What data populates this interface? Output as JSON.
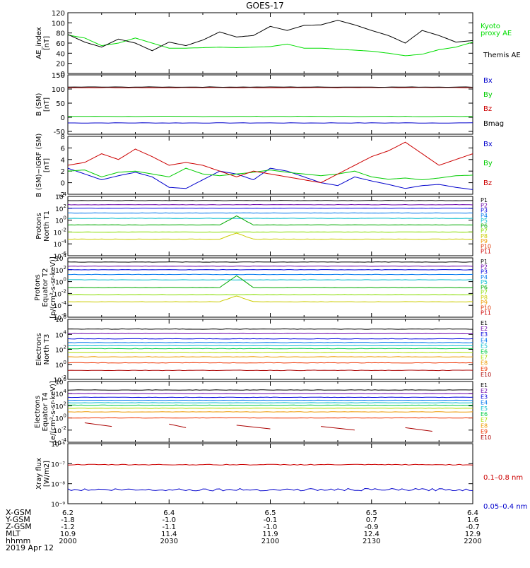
{
  "title": "GOES-17",
  "x_range_minutes": [
    0,
    120
  ],
  "chart_data": [
    {
      "type": "line",
      "panel": "ae",
      "ylabel": [
        "AE_index",
        "[nT]"
      ],
      "ylim": [
        0,
        120
      ],
      "yticks": [
        "0",
        "20",
        "40",
        "60",
        "80",
        "100",
        "120"
      ],
      "scale": "linear",
      "series": [
        {
          "name": "Kyoto proxy AE",
          "legend": [
            "Kyoto",
            "proxy AE"
          ],
          "color": "#00dd00",
          "x": [
            0,
            5,
            10,
            15,
            20,
            25,
            30,
            35,
            40,
            45,
            50,
            55,
            60,
            65,
            70,
            75,
            80,
            85,
            90,
            95,
            100,
            105,
            110,
            115,
            120
          ],
          "y": [
            76,
            70,
            55,
            60,
            70,
            60,
            50,
            50,
            51,
            52,
            51,
            52,
            53,
            58,
            50,
            50,
            48,
            46,
            44,
            40,
            35,
            38,
            47,
            52,
            62
          ]
        },
        {
          "name": "Themis AE",
          "legend": [
            "Themis AE"
          ],
          "color": "#000000",
          "x": [
            0,
            5,
            10,
            15,
            20,
            25,
            30,
            35,
            40,
            45,
            50,
            55,
            60,
            65,
            70,
            75,
            80,
            85,
            90,
            95,
            100,
            105,
            110,
            115,
            120
          ],
          "y": [
            77,
            62,
            52,
            68,
            60,
            45,
            62,
            55,
            66,
            82,
            72,
            75,
            93,
            85,
            95,
            96,
            105,
            96,
            85,
            75,
            60,
            85,
            75,
            62,
            65
          ]
        }
      ]
    },
    {
      "type": "line",
      "panel": "b",
      "ylabel": [
        "B (SM)",
        "[nT]"
      ],
      "ylim": [
        -60,
        150
      ],
      "yticks": [
        "-50",
        "0",
        "50",
        "100",
        "150"
      ],
      "scale": "linear",
      "series": [
        {
          "name": "Bx",
          "color": "#0000cc",
          "y_const": -20
        },
        {
          "name": "By",
          "color": "#00cc00",
          "y_const": 3
        },
        {
          "name": "Bz",
          "color": "#cc0000",
          "y_const": 105
        },
        {
          "name": "Bmag",
          "color": "#000000",
          "y_const": 107
        }
      ]
    },
    {
      "type": "line",
      "panel": "bdiff",
      "ylabel": [
        "B (SM)−IGRF (SM)",
        "[nT]"
      ],
      "ylim": [
        -2,
        8
      ],
      "yticks": [
        "-2",
        "0",
        "2",
        "4",
        "6",
        "8"
      ],
      "scale": "linear",
      "series": [
        {
          "name": "Bx",
          "color": "#0000cc",
          "x": [
            0,
            5,
            10,
            15,
            20,
            25,
            30,
            35,
            40,
            45,
            50,
            55,
            60,
            65,
            70,
            75,
            80,
            85,
            90,
            95,
            100,
            105,
            110,
            115,
            120
          ],
          "y": [
            2.5,
            1.5,
            0.5,
            1.2,
            1.8,
            1.0,
            -0.8,
            -1.0,
            0.5,
            2.0,
            1.5,
            0.5,
            2.5,
            2.0,
            1.0,
            0.0,
            -0.5,
            1.0,
            0.3,
            -0.3,
            -1.0,
            -0.5,
            -0.3,
            -0.8,
            -1.2
          ]
        },
        {
          "name": "By",
          "color": "#00cc00",
          "x": [
            0,
            5,
            10,
            15,
            20,
            25,
            30,
            35,
            40,
            45,
            50,
            55,
            60,
            65,
            70,
            75,
            80,
            85,
            90,
            95,
            100,
            105,
            110,
            115,
            120
          ],
          "y": [
            2.0,
            2.2,
            1.0,
            1.8,
            2.0,
            1.5,
            1.0,
            2.5,
            1.5,
            1.2,
            1.5,
            1.8,
            2.2,
            1.8,
            1.5,
            1.2,
            1.5,
            2.0,
            1.0,
            0.6,
            0.8,
            0.5,
            0.8,
            1.2,
            1.3
          ]
        },
        {
          "name": "Bz",
          "color": "#cc0000",
          "x": [
            0,
            5,
            10,
            15,
            20,
            25,
            30,
            35,
            40,
            45,
            50,
            55,
            60,
            65,
            70,
            75,
            80,
            85,
            90,
            95,
            100,
            105,
            110,
            115,
            120
          ],
          "y": [
            3.0,
            3.5,
            5.0,
            4.0,
            5.8,
            4.5,
            3.0,
            3.5,
            3.0,
            2.0,
            1.0,
            2.0,
            1.5,
            1.0,
            0.5,
            0.0,
            1.5,
            3.0,
            4.5,
            5.5,
            7.0,
            5.0,
            3.0,
            4.0,
            5.0
          ]
        }
      ]
    },
    {
      "type": "line",
      "panel": "p_t1",
      "ylabel": [
        "Protons",
        "North T1"
      ],
      "scale": "log",
      "ylim_exp": [
        -6,
        4
      ],
      "yticks_exp": [
        -6,
        -4,
        -2,
        0,
        2,
        4
      ],
      "series": [
        {
          "name": "P1",
          "color": "#000000",
          "level": 3.3
        },
        {
          "name": "P2",
          "color": "#6a00aa",
          "level": 2.6
        },
        {
          "name": "P3",
          "color": "#0000dd",
          "level": 2.0
        },
        {
          "name": "P4",
          "color": "#0077ee",
          "level": 1.2
        },
        {
          "name": "P5",
          "color": "#00bbcc",
          "level": 0.3
        },
        {
          "name": "P6",
          "color": "#00aa00",
          "level": -0.8,
          "spike": 1.5
        },
        {
          "name": "P7",
          "color": "#88dd00",
          "level": -2.0
        },
        {
          "name": "P8",
          "color": "#cccc00",
          "level": -3.2,
          "spike": 1.0
        },
        {
          "name": "P9",
          "color": "#ee9900"
        },
        {
          "name": "P10",
          "color": "#dd3300"
        },
        {
          "name": "P11",
          "color": "#cc0000"
        }
      ]
    },
    {
      "type": "line",
      "panel": "p_t2",
      "ylabel": [
        "Protons",
        "Equator T2",
        "[p/(cm²-s-sr-keV)]"
      ],
      "scale": "log",
      "ylim_exp": [
        -6,
        4
      ],
      "yticks_exp": [
        -6,
        -4,
        -2,
        0,
        2,
        4
      ],
      "series": [
        {
          "name": "P1",
          "color": "#000000",
          "level": 3.3
        },
        {
          "name": "P2",
          "color": "#6a00aa",
          "level": 2.6
        },
        {
          "name": "P3",
          "color": "#0000dd",
          "level": 2.0
        },
        {
          "name": "P4",
          "color": "#0077ee",
          "level": 1.2
        },
        {
          "name": "P5",
          "color": "#00bbcc",
          "level": 0.3
        },
        {
          "name": "P6",
          "color": "#00aa00",
          "level": -1.0,
          "spike": 2.0
        },
        {
          "name": "P7",
          "color": "#88dd00",
          "level": -2.2
        },
        {
          "name": "P8",
          "color": "#cccc00",
          "level": -3.4,
          "spike": 1.0
        },
        {
          "name": "P9",
          "color": "#ee9900"
        },
        {
          "name": "P10",
          "color": "#dd3300"
        },
        {
          "name": "P11",
          "color": "#cc0000"
        }
      ]
    },
    {
      "type": "line",
      "panel": "e_t3",
      "ylabel": [
        "Electrons",
        "North T3"
      ],
      "scale": "log",
      "ylim_exp": [
        -2,
        6
      ],
      "yticks_exp": [
        -2,
        0,
        2,
        4,
        6
      ],
      "series": [
        {
          "name": "E1",
          "color": "#000000",
          "level": 4.7
        },
        {
          "name": "E2",
          "color": "#6a00aa",
          "level": 4.1
        },
        {
          "name": "E3",
          "color": "#0000dd",
          "level": 3.4
        },
        {
          "name": "E4",
          "color": "#0077ee",
          "level": 2.9
        },
        {
          "name": "E5",
          "color": "#00bbcc",
          "level": 2.5
        },
        {
          "name": "E6",
          "color": "#00cc44",
          "level": 2.1
        },
        {
          "name": "E7",
          "color": "#aadd00",
          "level": 1.6
        },
        {
          "name": "E8",
          "color": "#ee9900",
          "level": 1.0
        },
        {
          "name": "E9",
          "color": "#ee3300",
          "level": 0.2
        },
        {
          "name": "E10",
          "color": "#aa0000",
          "level": -0.8
        }
      ]
    },
    {
      "type": "line",
      "panel": "e_t4",
      "ylabel": [
        "Electrons",
        "Equator T4",
        "[e/(cm²-s-sr-keV)]"
      ],
      "scale": "log",
      "ylim_exp": [
        -4,
        6
      ],
      "yticks_exp": [
        -4,
        -2,
        0,
        2,
        4,
        6
      ],
      "series": [
        {
          "name": "E1",
          "color": "#000000",
          "level": 4.6
        },
        {
          "name": "E2",
          "color": "#6a00aa",
          "level": 4.0
        },
        {
          "name": "E3",
          "color": "#0000dd",
          "level": 3.4
        },
        {
          "name": "E4",
          "color": "#0077ee",
          "level": 2.9
        },
        {
          "name": "E5",
          "color": "#00bbcc",
          "level": 2.5
        },
        {
          "name": "E6",
          "color": "#00cc44",
          "level": 2.1
        },
        {
          "name": "E7",
          "color": "#aadd00",
          "level": 1.6
        },
        {
          "name": "E8",
          "color": "#ee9900",
          "level": 1.0
        },
        {
          "name": "E9",
          "color": "#ee3300",
          "level": 0.0
        },
        {
          "name": "E10",
          "color": "#aa0000",
          "segments": true
        }
      ]
    },
    {
      "type": "line",
      "panel": "xray",
      "ylabel": [
        "Xray flux",
        "[W/m2]"
      ],
      "scale": "log",
      "ylim_exp": [
        -9,
        -6
      ],
      "yticks_exp": [
        -9,
        -8,
        -7,
        -6
      ],
      "yticks_labels": [
        "10⁻⁹",
        "10⁻⁸",
        "10⁻⁷",
        "10⁻⁶"
      ],
      "series": [
        {
          "name": "0.1–0.8 nm",
          "color": "#cc0000",
          "level": -7.05
        },
        {
          "name": "0.05–0.4 nm",
          "color": "#0000cc",
          "level": -8.3
        }
      ]
    }
  ],
  "ephemeris": {
    "labels": [
      "X-GSM",
      "Y-GSM",
      "Z-GSM",
      "MLT",
      "hhmm",
      "2019 Apr 12"
    ],
    "columns": [
      [
        "6.2",
        "-1.8",
        "-1.2",
        "10.9",
        "2000"
      ],
      [
        "6.4",
        "-1.0",
        "-1.1",
        "11.4",
        "2030"
      ],
      [
        "6.5",
        "-0.1",
        "-1.0",
        "11.9",
        "2100"
      ],
      [
        "6.5",
        "0.7",
        "-0.9",
        "12.4",
        "2130"
      ],
      [
        "6.4",
        "1.6",
        "-0.7",
        "12.9",
        "2200"
      ]
    ]
  }
}
